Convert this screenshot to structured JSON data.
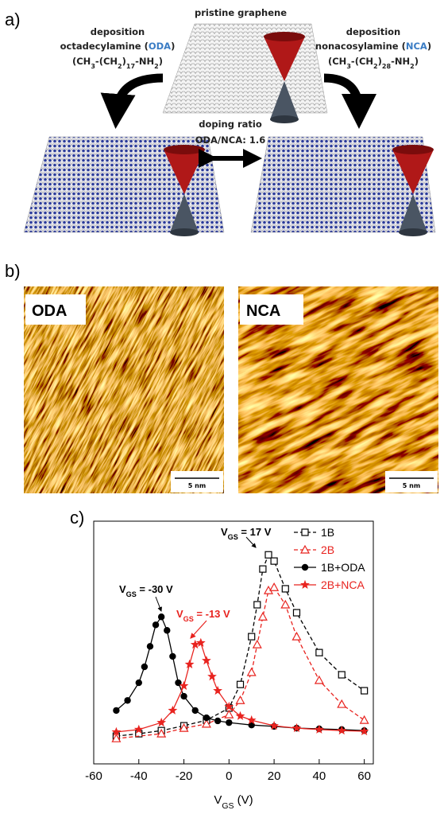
{
  "panel_a": {
    "label": "a)",
    "center_title": "pristine graphene",
    "left": {
      "line1": "deposition",
      "name": [
        "octadecylamine (",
        "ODA",
        ")"
      ],
      "formula": [
        "(CH",
        "3",
        "-(CH",
        "2",
        ")",
        "17",
        "-NH",
        "2",
        ")"
      ]
    },
    "right": {
      "line1": "deposition",
      "name": [
        "nonacosylamine (",
        "NCA",
        ")"
      ],
      "formula": [
        "(CH",
        "3",
        "-(CH",
        "2",
        ")",
        "28",
        "-NH",
        "2",
        ")"
      ]
    },
    "ratio": [
      "doping ratio",
      "ODA/NCA: 1.6"
    ]
  },
  "panel_b": {
    "label": "b)",
    "images": [
      {
        "label": "ODA",
        "scale": "5 nm"
      },
      {
        "label": "NCA",
        "scale": "5 nm"
      }
    ]
  },
  "panel_c_label": "c)",
  "chart_data": {
    "type": "line",
    "xlabel": {
      "text": "V",
      "sub": "GS",
      "rest": " (V)"
    },
    "xlim": [
      -60,
      64
    ],
    "xticks": [
      -60,
      -40,
      -20,
      0,
      20,
      40,
      60
    ],
    "ylim": [
      0,
      7
    ],
    "legend": "upper right",
    "series": [
      {
        "name": "1B",
        "color": "#000000",
        "marker": "square",
        "dashed": true,
        "x": [
          -50,
          -40,
          -30,
          -20,
          -10,
          0,
          5,
          10,
          12.5,
          15,
          17.5,
          20,
          25,
          30,
          40,
          50,
          60
        ],
        "values": [
          0.8,
          0.87,
          0.96,
          1.1,
          1.26,
          1.61,
          2.29,
          3.67,
          4.59,
          5.62,
          6.03,
          5.85,
          5.05,
          4.36,
          3.21,
          2.57,
          2.11
        ]
      },
      {
        "name": "2B",
        "color": "#e8231f",
        "marker": "triangle",
        "dashed": true,
        "x": [
          -50,
          -30,
          -20,
          -10,
          0,
          5,
          10,
          12.5,
          15,
          17.5,
          20,
          25,
          30,
          40,
          50,
          60
        ],
        "values": [
          0.73,
          0.87,
          1.03,
          1.15,
          1.42,
          1.83,
          2.64,
          3.44,
          4.24,
          5.0,
          5.09,
          4.59,
          3.67,
          2.41,
          1.72,
          1.26
        ]
      },
      {
        "name": "1B+ODA",
        "color": "#000000",
        "marker": "circle",
        "dashed": false,
        "x": [
          -50,
          -45,
          -40,
          -37.5,
          -35,
          -32.5,
          -30,
          -27.5,
          -25,
          -22.5,
          -20,
          -15,
          -10,
          -5,
          0,
          10,
          20,
          30,
          40,
          50,
          60
        ],
        "values": [
          1.54,
          1.83,
          2.34,
          2.8,
          3.39,
          4.01,
          4.24,
          3.85,
          3.1,
          2.34,
          1.95,
          1.54,
          1.33,
          1.24,
          1.19,
          1.12,
          1.08,
          1.03,
          1.01,
          0.99,
          0.96
        ]
      },
      {
        "name": "2B+NCA",
        "color": "#e8231f",
        "marker": "star",
        "dashed": false,
        "x": [
          -50,
          -40,
          -30,
          -25,
          -20,
          -17.5,
          -15,
          -12.5,
          -10,
          -7.5,
          -5,
          0,
          5,
          10,
          20,
          30,
          40,
          50,
          60
        ],
        "values": [
          0.92,
          0.99,
          1.19,
          1.54,
          2.25,
          2.87,
          3.44,
          3.49,
          2.98,
          2.52,
          2.11,
          1.65,
          1.38,
          1.26,
          1.1,
          1.03,
          0.99,
          0.96,
          0.94
        ]
      }
    ],
    "annotations": [
      {
        "text": "V",
        "sub": "GS",
        "rest": " = -30 V",
        "color": "#000000"
      },
      {
        "text": "V",
        "sub": "GS",
        "rest": " = -13 V",
        "color": "#e8231f"
      },
      {
        "text": "V",
        "sub": "GS",
        "rest": " = 17 V",
        "color": "#000000"
      }
    ]
  }
}
